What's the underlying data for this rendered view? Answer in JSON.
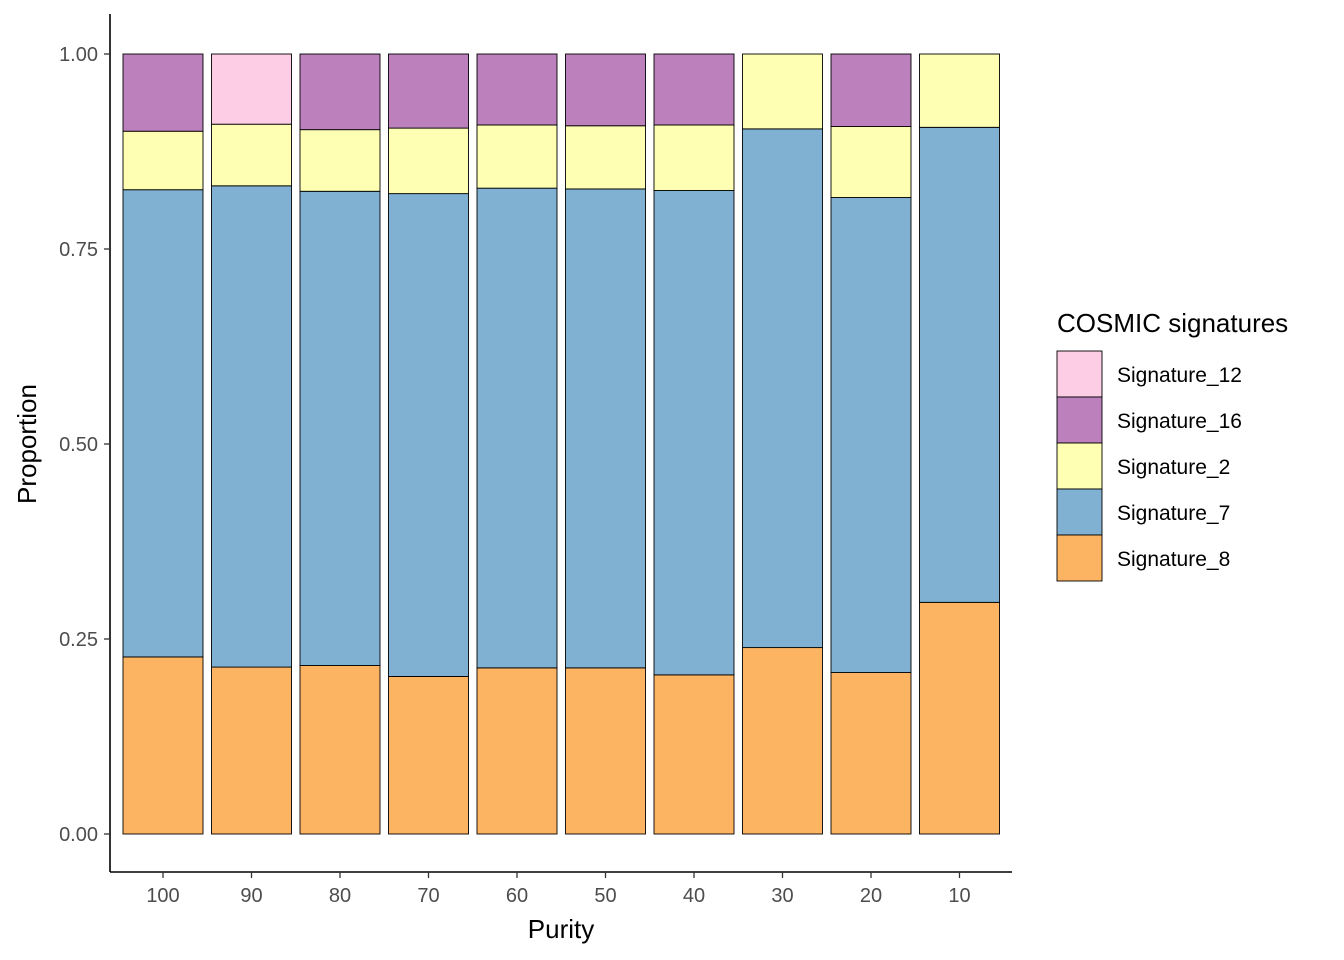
{
  "chart_data": {
    "type": "bar",
    "stacked": true,
    "xlabel": "Purity",
    "ylabel": "Proportion",
    "ylim": [
      0,
      1
    ],
    "yticks": [
      "0.00",
      "0.25",
      "0.50",
      "0.75",
      "1.00"
    ],
    "categories": [
      "100",
      "90",
      "80",
      "70",
      "60",
      "50",
      "40",
      "30",
      "20",
      "10"
    ],
    "legend": {
      "title": "COSMIC signatures",
      "placement": "right",
      "entries": [
        "Signature_12",
        "Signature_16",
        "Signature_2",
        "Signature_7",
        "Signature_8"
      ]
    },
    "series": [
      {
        "name": "Signature_8",
        "color": "#FDB462",
        "values": [
          0.227,
          0.214,
          0.216,
          0.202,
          0.213,
          0.213,
          0.204,
          0.239,
          0.207,
          0.297
        ]
      },
      {
        "name": "Signature_7",
        "color": "#80B1D3",
        "values": [
          0.599,
          0.617,
          0.608,
          0.619,
          0.615,
          0.614,
          0.621,
          0.665,
          0.609,
          0.609
        ]
      },
      {
        "name": "Signature_2",
        "color": "#FFFFB3",
        "values": [
          0.075,
          0.079,
          0.079,
          0.084,
          0.081,
          0.081,
          0.084,
          0.096,
          0.091,
          0.094
        ]
      },
      {
        "name": "Signature_16",
        "color": "#BC80BD",
        "values": [
          0.099,
          0.0,
          0.097,
          0.095,
          0.091,
          0.092,
          0.091,
          0.0,
          0.093,
          0.0
        ]
      },
      {
        "name": "Signature_12",
        "color": "#FCCDE5",
        "values": [
          0.0,
          0.09,
          0.0,
          0.0,
          0.0,
          0.0,
          0.0,
          0.0,
          0.0,
          0.0
        ]
      }
    ]
  }
}
